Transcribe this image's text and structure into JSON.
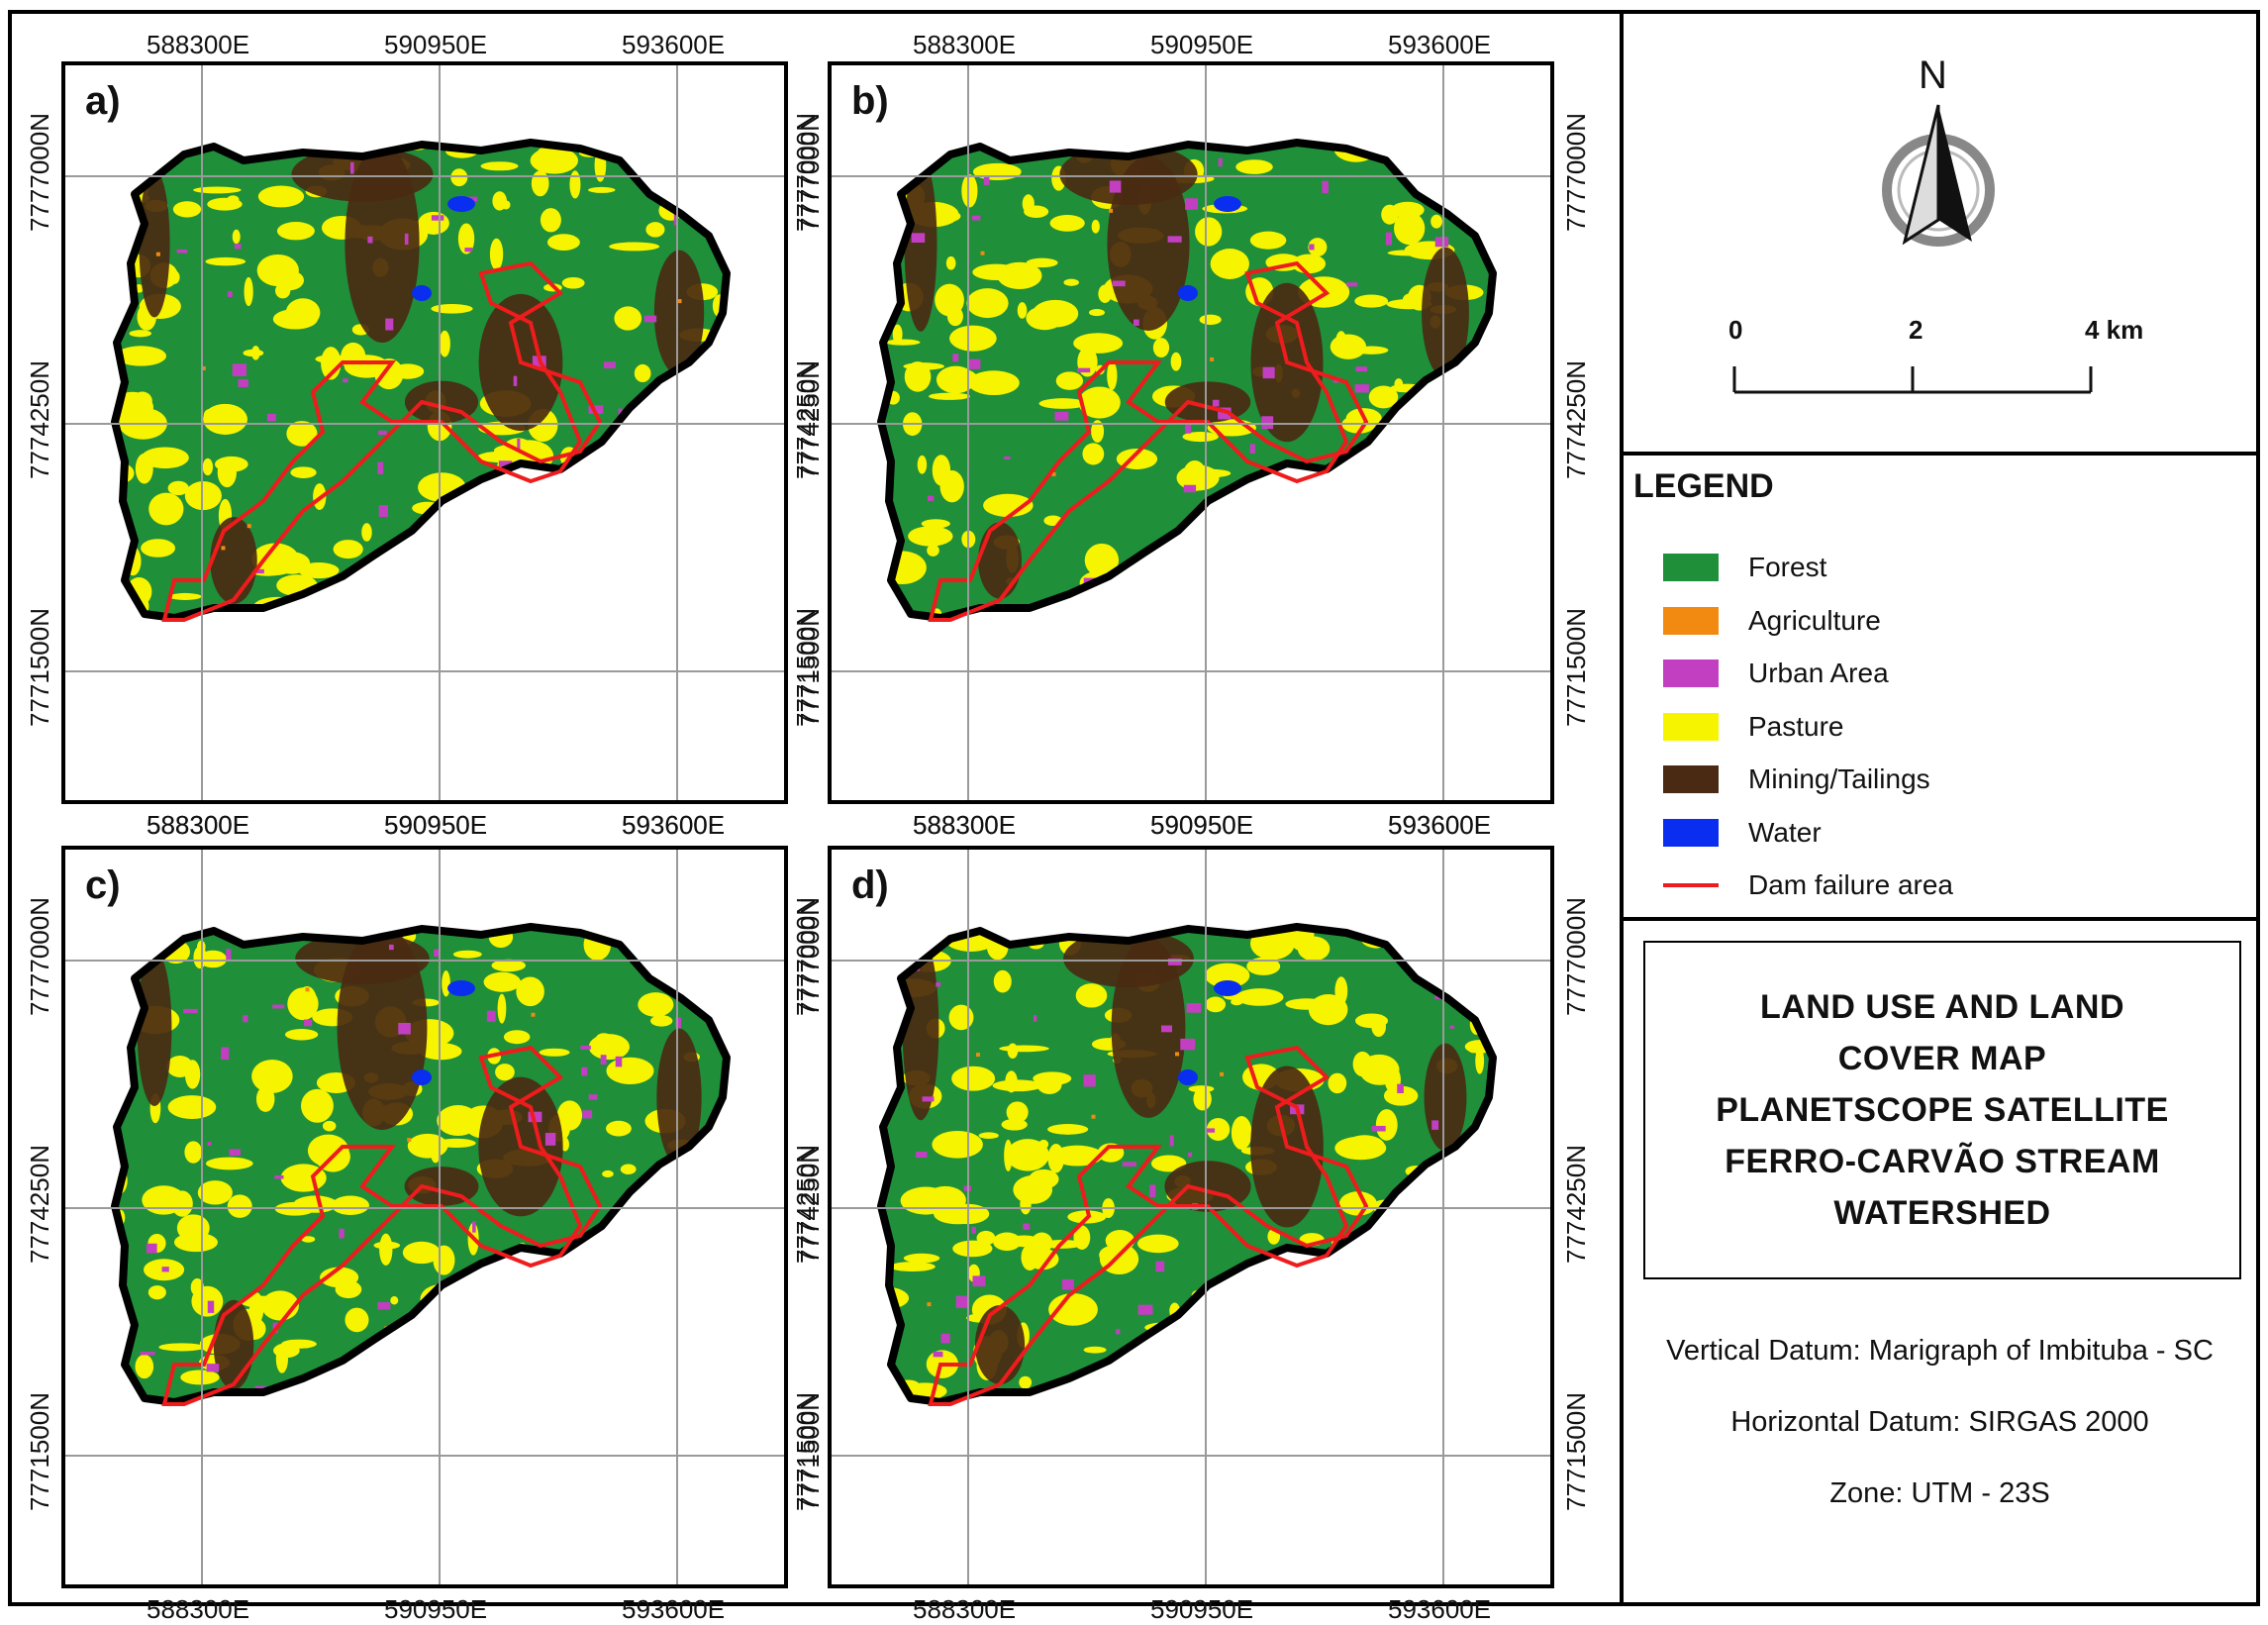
{
  "panels": [
    {
      "label": "a)"
    },
    {
      "label": "b)"
    },
    {
      "label": "c)"
    },
    {
      "label": "d)"
    }
  ],
  "grid": {
    "eastings": [
      "588300E",
      "590950E",
      "593600E"
    ],
    "northings": [
      "7777000N",
      "7774250N",
      "7771500N"
    ]
  },
  "north_arrow": {
    "label": "N"
  },
  "scale_bar": {
    "ticks": [
      "0",
      "2",
      "4 km"
    ]
  },
  "legend": {
    "title": "LEGEND",
    "items": [
      {
        "label": "Forest",
        "color": "#1f8f3a",
        "kind": "fill"
      },
      {
        "label": "Agriculture",
        "color": "#f28a12",
        "kind": "fill"
      },
      {
        "label": "Urban Area",
        "color": "#c23fc2",
        "kind": "fill"
      },
      {
        "label": "Pasture",
        "color": "#f7f400",
        "kind": "fill"
      },
      {
        "label": "Mining/Tailings",
        "color": "#4a2a12",
        "kind": "fill"
      },
      {
        "label": "Water",
        "color": "#0a2ef0",
        "kind": "fill"
      },
      {
        "label": "Dam failure area",
        "color": "#ee1c1c",
        "kind": "line"
      }
    ]
  },
  "title": {
    "lines": [
      "LAND USE AND LAND",
      "COVER MAP",
      "PLANETSCOPE SATELLITE",
      "FERRO-CARVÃO STREAM",
      "WATERSHED"
    ]
  },
  "datum": {
    "vertical": "Vertical Datum: Marigraph of Imbituba - SC",
    "horizontal": "Horizontal Datum: SIRGAS 2000",
    "zone": "Zone: UTM - 23S"
  }
}
